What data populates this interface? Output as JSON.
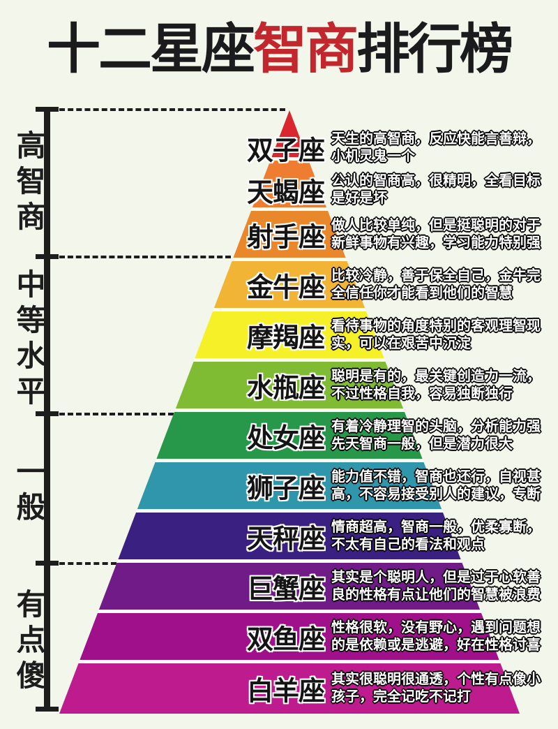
{
  "title": {
    "part1": "十二星座",
    "highlight": "智商",
    "part2": "排行榜"
  },
  "colors": {
    "background": "#f3f6ea",
    "title_text": "#1b1b1e",
    "title_highlight": "#c1272d",
    "axis": "#1d1d1d",
    "band_gap": "#fcfdf5"
  },
  "axis_sections": [
    {
      "label": "高智商"
    },
    {
      "label": "中等水平"
    },
    {
      "label": "一般"
    },
    {
      "label": "有点傻"
    }
  ],
  "rows": [
    {
      "name": "双子座",
      "color": "#d8272e",
      "desc1": "天生的高智商，反应快能言善辩，",
      "desc2": "小机灵鬼一个"
    },
    {
      "name": "天蝎座",
      "color": "#ee7c31",
      "desc1": "公认的智商高，很精明，全看目标",
      "desc2": "是好是坏"
    },
    {
      "name": "射手座",
      "color": "#e8882b",
      "desc1": "做人比较单纯，但是挺聪明的对于",
      "desc2": "新鲜事物有兴趣，学习能力特别强"
    },
    {
      "name": "金牛座",
      "color": "#f2b434",
      "desc1": "比较冷静，善于保全自己，金牛完",
      "desc2": "全信任你才能看到他们的智慧"
    },
    {
      "name": "摩羯座",
      "color": "#f5f028",
      "desc1": "看待事物的角度特别的客观理智现",
      "desc2": "实，可以在艰苦中沉淀"
    },
    {
      "name": "水瓶座",
      "color": "#80bb34",
      "desc1": "聪明是有的，最关键创造力一流，",
      "desc2": "不过性格自我，容易独断独行"
    },
    {
      "name": "处女座",
      "color": "#27984a",
      "desc1": "有着冷静理智的头脑，分析能力强",
      "desc2": "先天智商一般，但是潜力很大"
    },
    {
      "name": "狮子座",
      "color": "#2f96ac",
      "desc1": "能力值不错，智商也还行，自视甚",
      "desc2": "高，不容易接受别人的建议，专断"
    },
    {
      "name": "天秤座",
      "color": "#3a2080",
      "desc1": "情商超高，智商一般，优柔寡断，",
      "desc2": "不太有自己的看法和观点"
    },
    {
      "name": "巨蟹座",
      "color": "#701b87",
      "desc1": "其实是个聪明人，但是过于心软善",
      "desc2": "良的性格有点让他们的智慧被浪费"
    },
    {
      "name": "双鱼座",
      "color": "#a0108a",
      "desc1": "性格很软，没有野心，遇到问题想",
      "desc2": "的是依赖或是逃避，好在性格讨喜"
    },
    {
      "name": "白羊座",
      "color": "#bd1b8e",
      "desc1": "其实很聪明很通透，个性有点像小",
      "desc2": "孩子，完全记吃不记打"
    }
  ]
}
